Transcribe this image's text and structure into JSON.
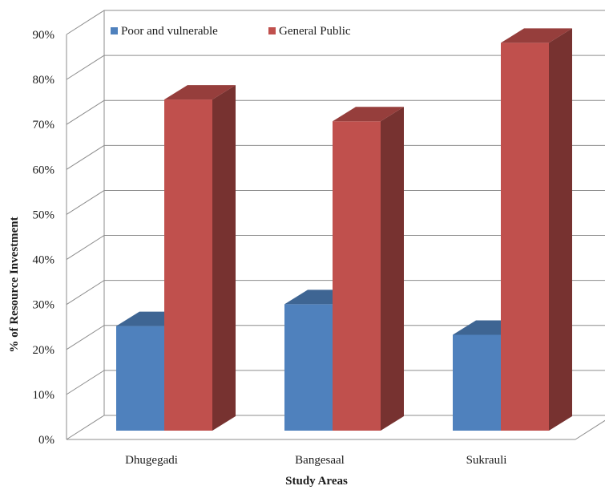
{
  "chart_data": {
    "type": "bar",
    "style": "3d-clustered-column",
    "categories": [
      "Dhugegadi",
      "Bangesaal",
      "Sukrauli"
    ],
    "series": [
      {
        "name": "Poor and vulnerable",
        "values": [
          24,
          29,
          22
        ],
        "color": "#4f81bd"
      },
      {
        "name": "General Public",
        "values": [
          76,
          71,
          89
        ],
        "color": "#c0504d"
      }
    ],
    "xlabel": "Study Areas",
    "ylabel": "% of Resource Investment",
    "ylim": [
      0,
      90
    ],
    "yticks": [
      "0%",
      "10%",
      "20%",
      "30%",
      "40%",
      "50%",
      "60%",
      "70%",
      "80%",
      "90%"
    ],
    "grid": true,
    "legend_position": "top-left"
  }
}
